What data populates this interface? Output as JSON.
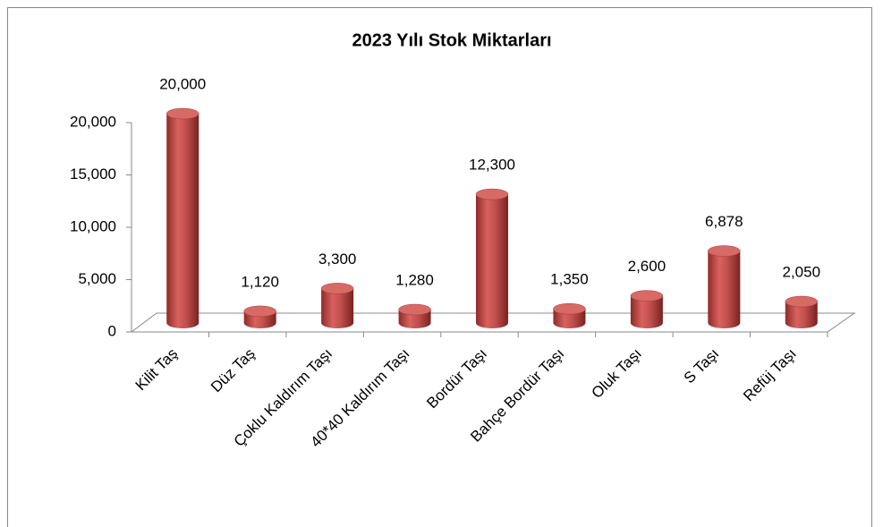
{
  "chart_data": {
    "type": "bar",
    "title": "2023 Yılı Stok Miktarları",
    "categories": [
      "Kilit Taş",
      "Düz Taş",
      "Çoklu Kaldırım Taşı",
      "40*40 Kaldırım Taşı",
      "Bordür Taşı",
      "Bahçe Bordür Taşı",
      "Oluk Taşı",
      "S Taşı",
      "Refüj Taşı"
    ],
    "values": [
      20000,
      1120,
      3300,
      1280,
      12300,
      1350,
      2600,
      6878,
      2050
    ],
    "value_labels": [
      "20,000",
      "1,120",
      "3,300",
      "1,280",
      "12,300",
      "1,350",
      "2,600",
      "6,878",
      "2,050"
    ],
    "color": "#c0504d",
    "ylim": [
      0,
      20000
    ],
    "yticks": [
      {
        "value": 0,
        "label": "0"
      },
      {
        "value": 5000,
        "label": "5,000"
      },
      {
        "value": 10000,
        "label": "10,000"
      },
      {
        "value": 15000,
        "label": "15,000"
      },
      {
        "value": 20000,
        "label": "20,000"
      }
    ]
  }
}
